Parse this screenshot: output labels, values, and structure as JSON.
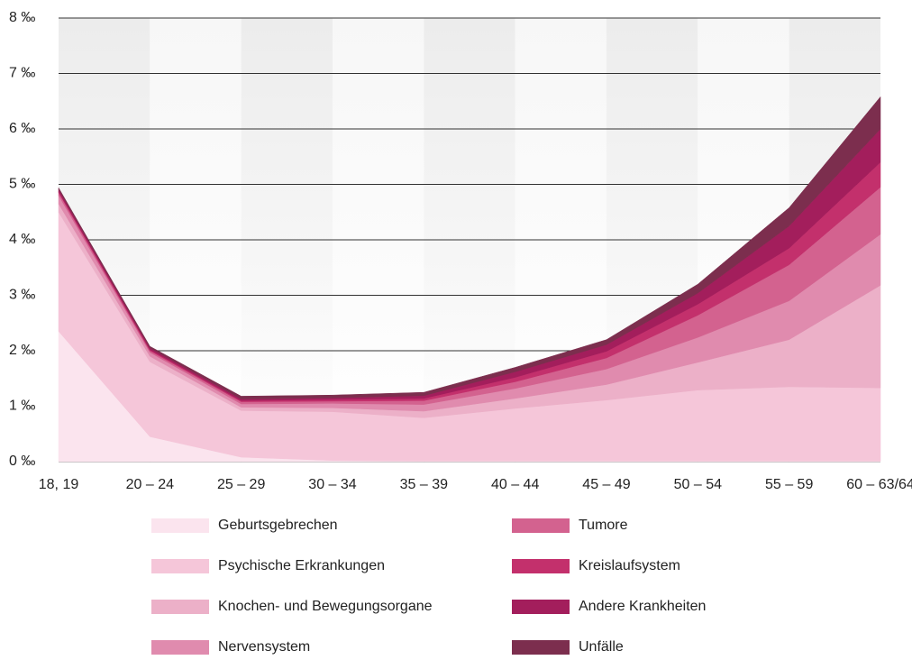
{
  "chart_data": {
    "type": "area",
    "stacked": true,
    "categories": [
      "18, 19",
      "20 – 24",
      "25 – 29",
      "30 – 34",
      "35 – 39",
      "40 – 44",
      "45 – 49",
      "50 – 54",
      "55 – 59",
      "60 – 63/64"
    ],
    "ylim": [
      0,
      8
    ],
    "yticks": [
      {
        "value": 0,
        "label": "0 ‰"
      },
      {
        "value": 1,
        "label": "1 ‰"
      },
      {
        "value": 2,
        "label": "2 ‰"
      },
      {
        "value": 3,
        "label": "3 ‰"
      },
      {
        "value": 4,
        "label": "4 ‰"
      },
      {
        "value": 5,
        "label": "5 ‰"
      },
      {
        "value": 6,
        "label": "6 ‰"
      },
      {
        "value": 7,
        "label": "7 ‰"
      },
      {
        "value": 8,
        "label": "8 ‰"
      }
    ],
    "grid": true,
    "series": [
      {
        "name": "Geburtsgebrechen",
        "color": "#fbe4ee",
        "values": [
          2.35,
          0.45,
          0.08,
          0.02,
          0.01,
          0.01,
          0.01,
          0.01,
          0.01,
          0.01
        ]
      },
      {
        "name": "Psychische Erkrankungen",
        "color": "#f5c6d9",
        "values": [
          2.15,
          1.35,
          0.84,
          0.88,
          0.78,
          0.95,
          1.1,
          1.28,
          1.34,
          1.32
        ]
      },
      {
        "name": "Knochen- und Bewegungsorgane",
        "color": "#ecb0c8",
        "values": [
          0.15,
          0.1,
          0.06,
          0.07,
          0.12,
          0.18,
          0.28,
          0.5,
          0.85,
          1.85
        ]
      },
      {
        "name": "Nervensystem",
        "color": "#e08bae",
        "values": [
          0.15,
          0.07,
          0.06,
          0.08,
          0.12,
          0.18,
          0.28,
          0.45,
          0.7,
          0.92
        ]
      },
      {
        "name": "Tumore",
        "color": "#d3628f",
        "values": [
          0.05,
          0.03,
          0.04,
          0.04,
          0.07,
          0.12,
          0.2,
          0.4,
          0.65,
          0.85
        ]
      },
      {
        "name": "Kreislaufsystem",
        "color": "#c3306c",
        "values": [
          0.02,
          0.02,
          0.02,
          0.03,
          0.04,
          0.08,
          0.12,
          0.2,
          0.3,
          0.45
        ]
      },
      {
        "name": "Andere Krankheiten",
        "color": "#a31e5c",
        "values": [
          0.04,
          0.03,
          0.03,
          0.03,
          0.05,
          0.1,
          0.12,
          0.2,
          0.4,
          0.6
        ]
      },
      {
        "name": "Unfälle",
        "color": "#7c2e4e",
        "values": [
          0.03,
          0.03,
          0.05,
          0.05,
          0.06,
          0.08,
          0.09,
          0.16,
          0.33,
          0.58
        ]
      }
    ]
  }
}
